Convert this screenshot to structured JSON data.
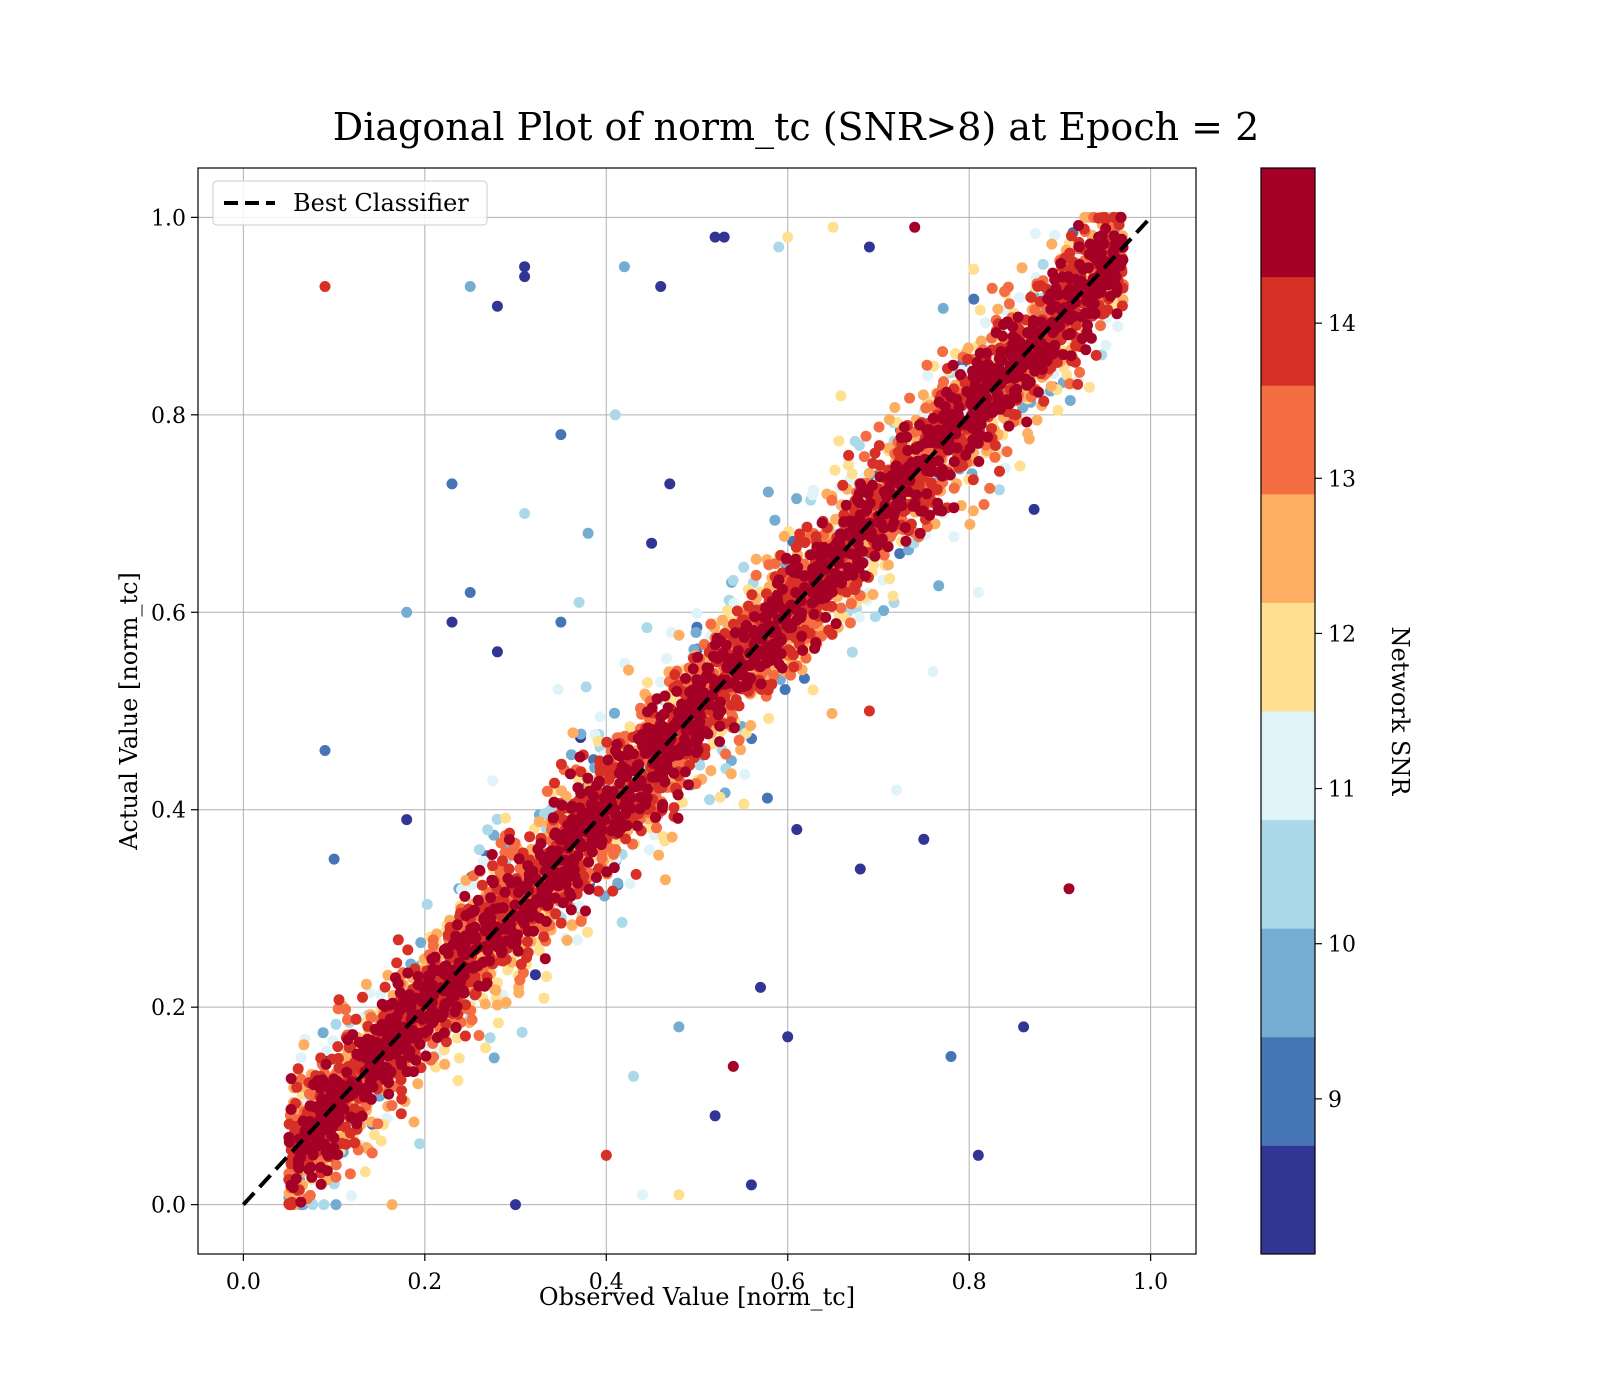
{
  "chart_data": {
    "type": "scatter",
    "title": "Diagonal Plot of norm_tc (SNR>8) at Epoch = 2",
    "xlabel": "Observed Value [norm_tc]",
    "ylabel": "Actual Value [norm_tc]",
    "xlim": [
      -0.05,
      1.05
    ],
    "ylim": [
      -0.05,
      1.05
    ],
    "xticks": [
      "0.0",
      "0.2",
      "0.4",
      "0.6",
      "0.8",
      "1.0"
    ],
    "yticks": [
      "0.0",
      "0.2",
      "0.4",
      "0.6",
      "0.8",
      "1.0"
    ],
    "grid": true,
    "legend": {
      "placement": "upper-left",
      "entries": [
        "Best Classifier"
      ]
    },
    "reference_line": {
      "name": "Best Classifier",
      "x": [
        0.0,
        1.0
      ],
      "y": [
        0.0,
        1.0
      ],
      "style": "dashed",
      "color": "#000000"
    },
    "colorbar": {
      "label": "Network SNR",
      "min": 8.0,
      "max": 15.0,
      "ticks": [
        "9",
        "10",
        "11",
        "12",
        "13",
        "14"
      ],
      "colors": [
        "#313695",
        "#4575b4",
        "#74add1",
        "#abd9e9",
        "#e0f3f8",
        "#fee090",
        "#fdae61",
        "#f46d43",
        "#d73027",
        "#a50026"
      ]
    },
    "dense_band": {
      "description_free": true,
      "x_range": [
        0.05,
        0.97
      ],
      "half_width": 0.07,
      "count": 5500
    },
    "outliers": [
      [
        0.09,
        0.93,
        14.0
      ],
      [
        0.31,
        0.95,
        8.2
      ],
      [
        0.31,
        0.94,
        8.2
      ],
      [
        0.28,
        0.91,
        8.2
      ],
      [
        0.25,
        0.93,
        10.0
      ],
      [
        0.53,
        0.98,
        8.2
      ],
      [
        0.42,
        0.95,
        9.5
      ],
      [
        0.46,
        0.93,
        8.2
      ],
      [
        0.74,
        0.99,
        14.5
      ],
      [
        0.35,
        0.78,
        9.3
      ],
      [
        0.41,
        0.8,
        10.3
      ],
      [
        0.23,
        0.73,
        9.3
      ],
      [
        0.47,
        0.73,
        8.2
      ],
      [
        0.31,
        0.7,
        10.5
      ],
      [
        0.18,
        0.6,
        9.8
      ],
      [
        0.25,
        0.62,
        9.3
      ],
      [
        0.23,
        0.59,
        8.2
      ],
      [
        0.28,
        0.56,
        8.2
      ],
      [
        0.09,
        0.46,
        9.3
      ],
      [
        0.18,
        0.39,
        8.2
      ],
      [
        0.1,
        0.35,
        9.3
      ],
      [
        0.61,
        0.38,
        8.2
      ],
      [
        0.68,
        0.34,
        8.2
      ],
      [
        0.75,
        0.37,
        8.2
      ],
      [
        0.91,
        0.32,
        14.5
      ],
      [
        0.86,
        0.18,
        8.2
      ],
      [
        0.78,
        0.15,
        9.3
      ],
      [
        0.81,
        0.05,
        8.2
      ],
      [
        0.6,
        0.17,
        8.2
      ],
      [
        0.57,
        0.22,
        8.2
      ],
      [
        0.54,
        0.14,
        14.5
      ],
      [
        0.52,
        0.09,
        8.2
      ],
      [
        0.48,
        0.18,
        10.0
      ],
      [
        0.43,
        0.13,
        10.3
      ],
      [
        0.44,
        0.01,
        11.0
      ],
      [
        0.4,
        0.05,
        14.0
      ],
      [
        0.3,
        0.0,
        8.2
      ],
      [
        0.48,
        0.01,
        11.5
      ],
      [
        0.56,
        0.02,
        8.2
      ],
      [
        0.69,
        0.5,
        14.2
      ],
      [
        0.72,
        0.42,
        11.0
      ],
      [
        0.76,
        0.54,
        11.2
      ],
      [
        0.81,
        0.62,
        11.0
      ],
      [
        0.52,
        0.98,
        8.2
      ],
      [
        0.59,
        0.97,
        10.5
      ],
      [
        0.6,
        0.98,
        12.0
      ],
      [
        0.65,
        0.99,
        11.5
      ],
      [
        0.69,
        0.97,
        8.2
      ],
      [
        0.38,
        0.68,
        10.0
      ],
      [
        0.45,
        0.67,
        8.2
      ],
      [
        0.37,
        0.61,
        10.5
      ],
      [
        0.35,
        0.59,
        9.3
      ]
    ]
  }
}
